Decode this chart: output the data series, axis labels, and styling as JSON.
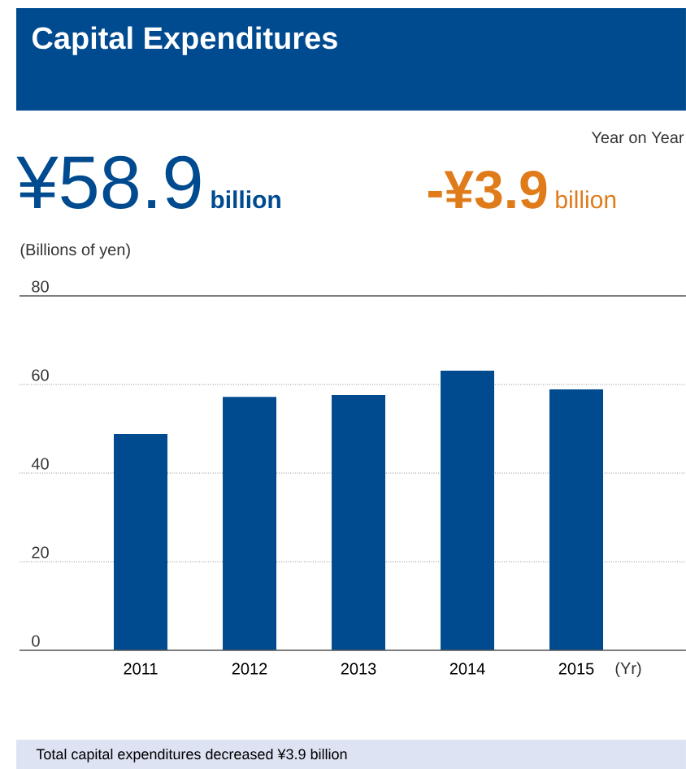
{
  "chart_data": {
    "type": "bar",
    "title": "Capital Expenditures",
    "annotations": [
      "¥58.9",
      "billion",
      "Year on Year",
      "-¥3.9",
      "billion",
      "Total capital expenditures decreased ¥3.9 billion"
    ],
    "ylabel": "(Billions of yen)",
    "xlabel": "(Yr)",
    "categories": [
      "2011",
      "2012",
      "2013",
      "2014",
      "2015"
    ],
    "values": [
      48.8,
      57.2,
      57.6,
      63.1,
      58.9
    ],
    "color": "#004b8f",
    "ylim": [
      0,
      80
    ],
    "yticks": [
      0,
      20,
      40,
      60,
      80
    ],
    "grid": "y"
  }
}
